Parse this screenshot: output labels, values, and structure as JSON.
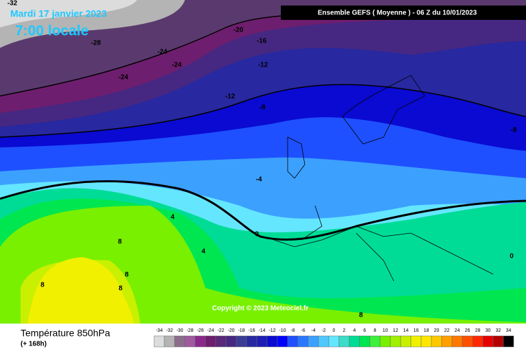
{
  "header": {
    "date": "Mardi 17 janvier 2023",
    "time": "7:00 locale",
    "run": "Ensemble GEFS  ( Moyenne )  -  06 Z du 10/01/2023"
  },
  "footer": {
    "title": "Température 850hPa",
    "lead": "(+ 168h)",
    "copyright": "Copyright © 2023 Meteociel.fr"
  },
  "contour_labels": [
    -32,
    -28,
    -24,
    -24,
    -24,
    -20,
    -16,
    -12,
    -12,
    -8,
    -8,
    -4,
    0,
    4,
    4,
    8,
    8,
    8,
    8,
    8,
    0
  ],
  "legend": [
    {
      "value": -34,
      "color": "#dcdcdc"
    },
    {
      "value": -32,
      "color": "#b4b4b4"
    },
    {
      "value": -30,
      "color": "#8c6e8c"
    },
    {
      "value": -28,
      "color": "#a05aa0"
    },
    {
      "value": -26,
      "color": "#8c288c"
    },
    {
      "value": -24,
      "color": "#6e1e6e"
    },
    {
      "value": -22,
      "color": "#5a2878"
    },
    {
      "value": -20,
      "color": "#462882"
    },
    {
      "value": -18,
      "color": "#3c3c96"
    },
    {
      "value": -16,
      "color": "#2828a0"
    },
    {
      "value": -14,
      "color": "#1e1eb4"
    },
    {
      "value": -12,
      "color": "#0a0ad2"
    },
    {
      "value": -10,
      "color": "#0000ff"
    },
    {
      "value": -8,
      "color": "#1e50ff"
    },
    {
      "value": -6,
      "color": "#2878ff"
    },
    {
      "value": -4,
      "color": "#3ca0ff"
    },
    {
      "value": -2,
      "color": "#50c8ff"
    },
    {
      "value": 0,
      "color": "#64e6ff"
    },
    {
      "value": 2,
      "color": "#3cdcc8"
    },
    {
      "value": 4,
      "color": "#00dc96"
    },
    {
      "value": 6,
      "color": "#00e650"
    },
    {
      "value": 8,
      "color": "#3cf03c"
    },
    {
      "value": 10,
      "color": "#78f000"
    },
    {
      "value": 12,
      "color": "#a0f000"
    },
    {
      "value": 14,
      "color": "#c8f000"
    },
    {
      "value": 16,
      "color": "#f0f000"
    },
    {
      "value": 18,
      "color": "#ffe600"
    },
    {
      "value": 20,
      "color": "#ffc800"
    },
    {
      "value": 22,
      "color": "#ffa000"
    },
    {
      "value": 24,
      "color": "#ff7800"
    },
    {
      "value": 26,
      "color": "#ff5000"
    },
    {
      "value": 28,
      "color": "#ff2800"
    },
    {
      "value": 30,
      "color": "#e60000"
    },
    {
      "value": 32,
      "color": "#b40000"
    },
    {
      "value": 34,
      "color": "#000000"
    }
  ]
}
